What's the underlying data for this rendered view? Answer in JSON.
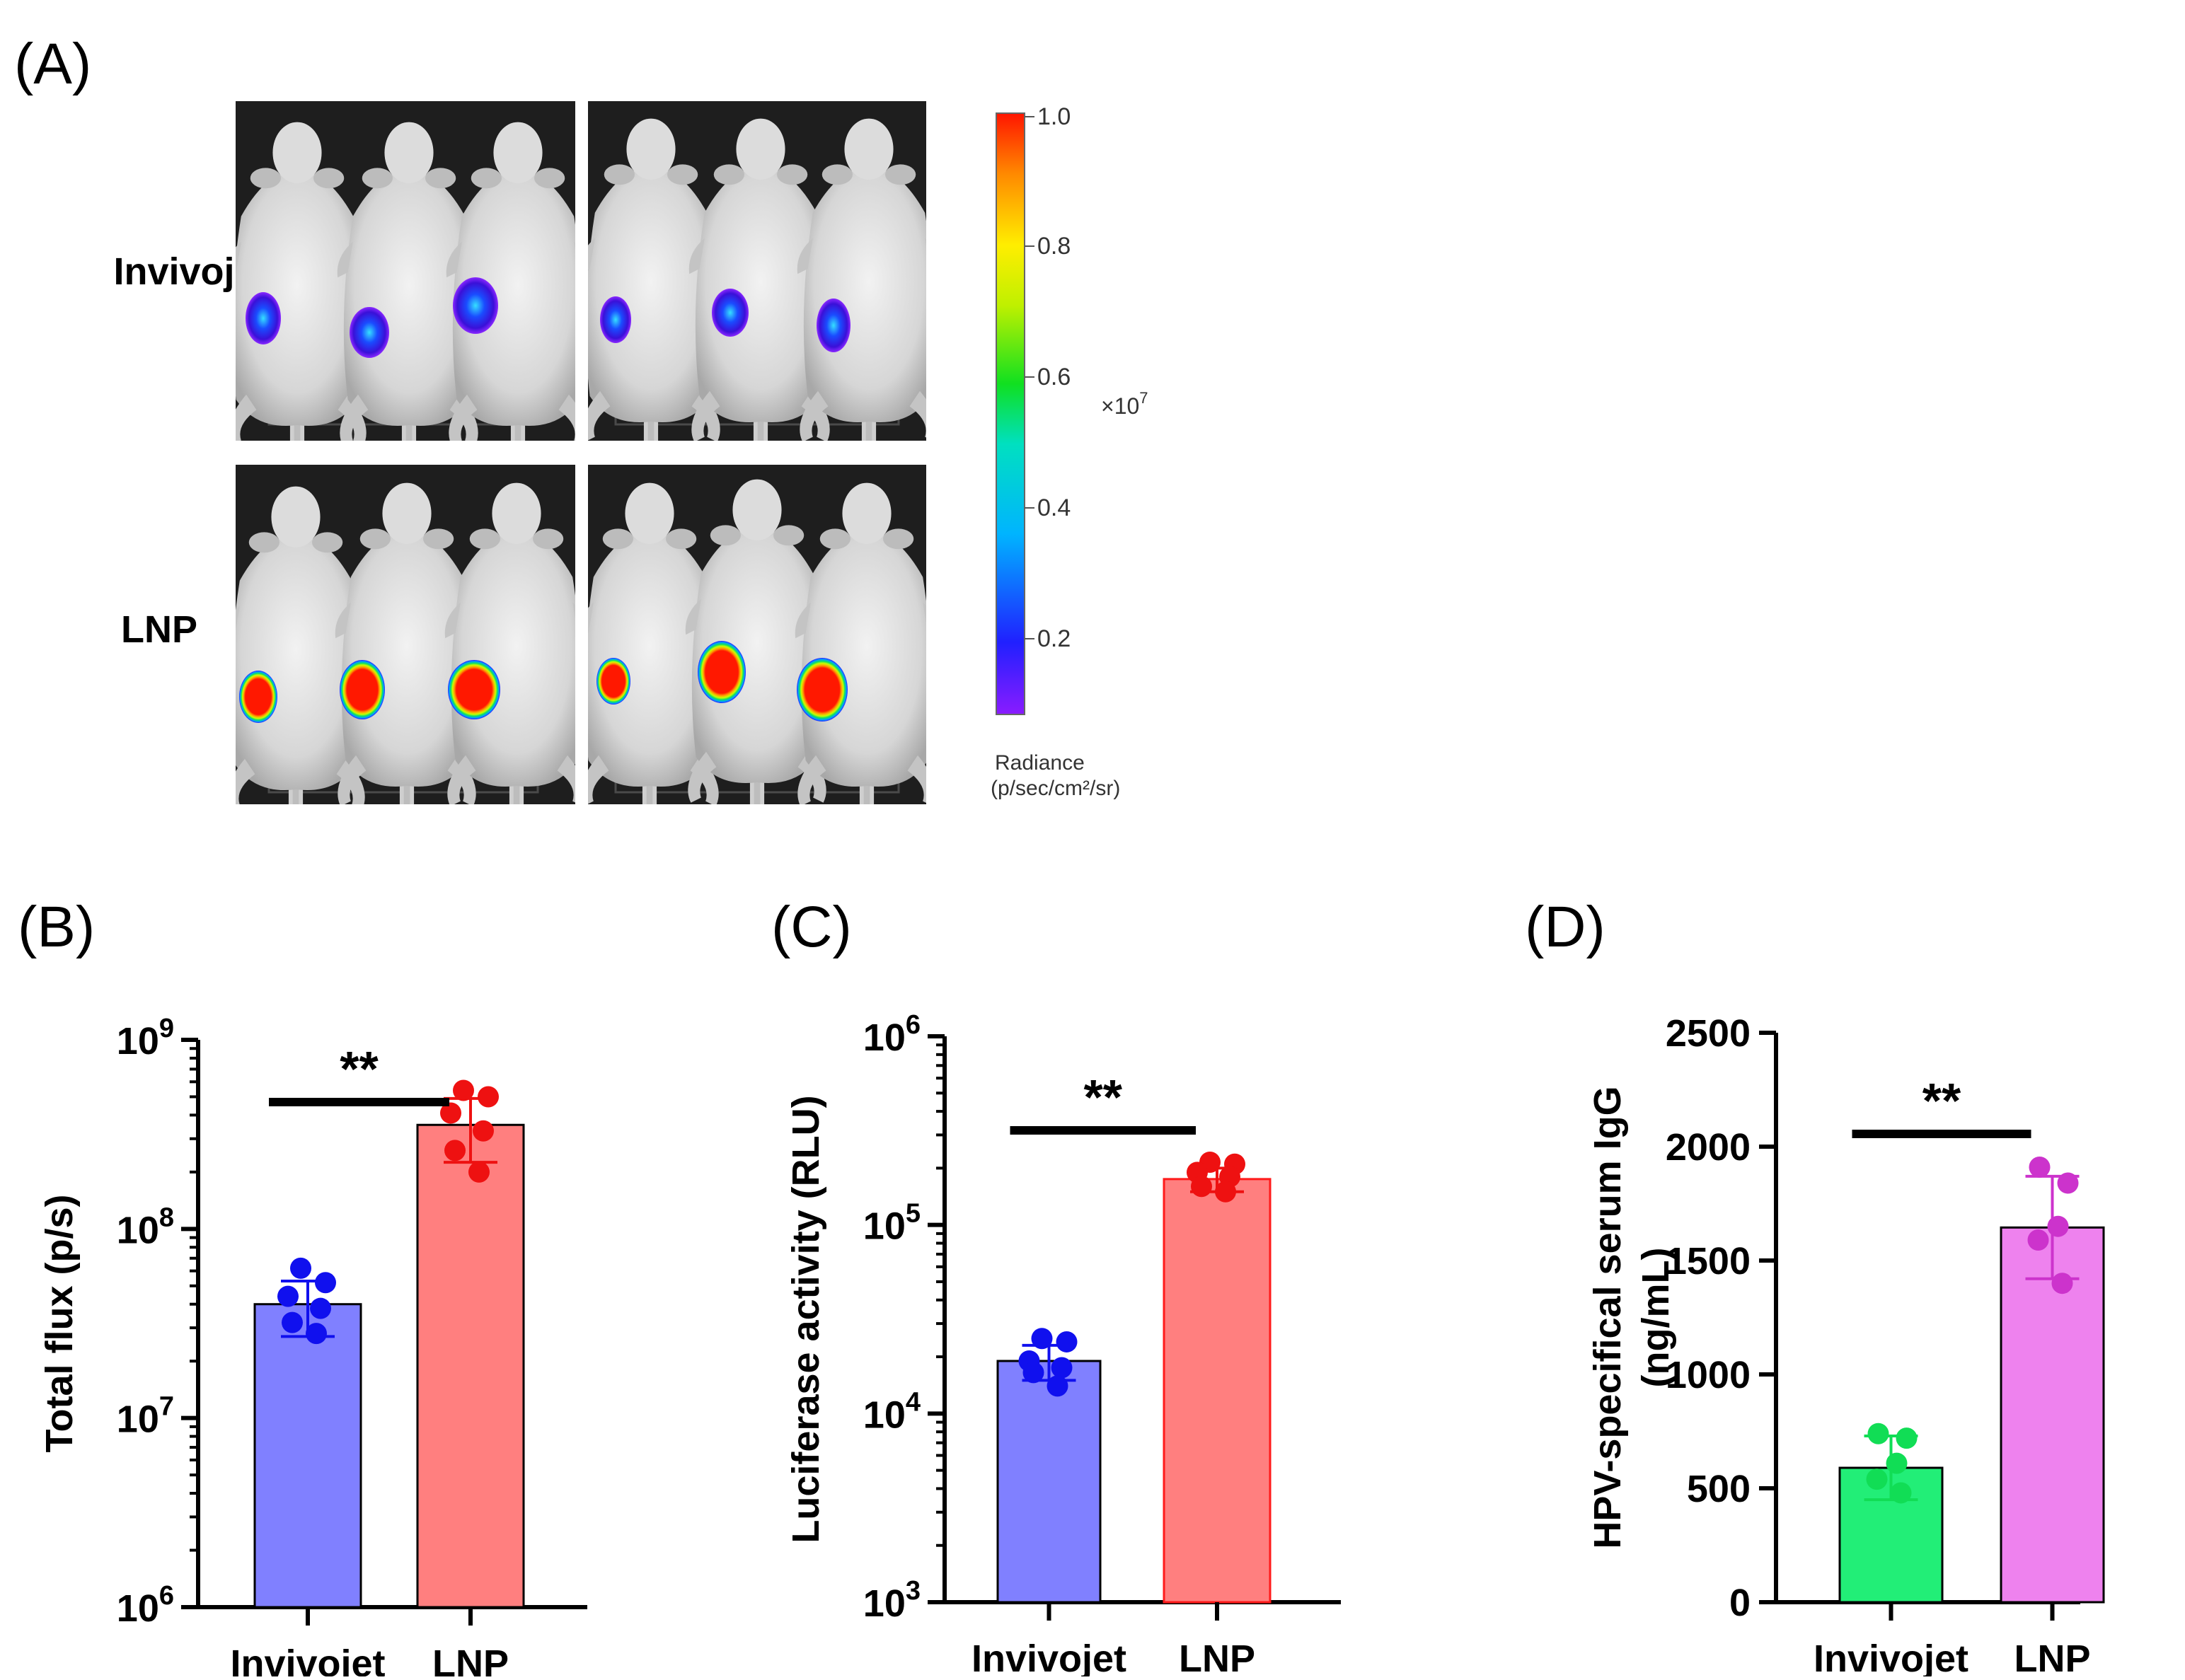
{
  "panel_a": {
    "label": "(A)",
    "row_labels": [
      "Invivojet",
      "LNP"
    ],
    "colorbar": {
      "ticks": [
        "1.0",
        "0.8",
        "0.6",
        "0.4",
        "0.2"
      ],
      "multiplier": "×10",
      "multiplier_exp": "7",
      "title_line1": "Radiance",
      "title_line2": "(p/sec/cm²/sr)"
    }
  },
  "chart_data": [
    {
      "id": "B",
      "label": "(B)",
      "type": "bar",
      "scale": "log",
      "ylabel": "Total flux (p/s)",
      "ylim": [
        1000000,
        1000000000
      ],
      "yticks": [
        {
          "base": "10",
          "exp": "6"
        },
        {
          "base": "10",
          "exp": "7"
        },
        {
          "base": "10",
          "exp": "8"
        },
        {
          "base": "10",
          "exp": "9"
        }
      ],
      "categories": [
        "Invivojet",
        "LNP"
      ],
      "values": [
        40000000,
        355000000
      ],
      "errors": [
        [
          27000000,
          53000000
        ],
        [
          225000000,
          490000000
        ]
      ],
      "points": [
        [
          62000000,
          52000000,
          44000000,
          38000000,
          32000000,
          28000000
        ],
        [
          540000000,
          500000000,
          410000000,
          330000000,
          260000000,
          200000000
        ]
      ],
      "colors": [
        "#8080ff",
        "#ff7f7f"
      ],
      "edge_colors": [
        "#000000",
        "#000000"
      ],
      "point_colors": [
        "#1010ee",
        "#ee1111"
      ],
      "significance": "**"
    },
    {
      "id": "C",
      "label": "(C)",
      "type": "bar",
      "scale": "log",
      "ylabel": "Luciferase activity (RLU)",
      "ylim": [
        1000,
        1000000
      ],
      "yticks": [
        {
          "base": "10",
          "exp": "3"
        },
        {
          "base": "10",
          "exp": "4"
        },
        {
          "base": "10",
          "exp": "5"
        },
        {
          "base": "10",
          "exp": "6"
        }
      ],
      "categories": [
        "Invivojet",
        "LNP"
      ],
      "values": [
        19000,
        175000
      ],
      "errors": [
        [
          15000,
          23000
        ],
        [
          150000,
          200000
        ]
      ],
      "points": [
        [
          25000,
          24000,
          19000,
          17500,
          16500,
          14000
        ],
        [
          215000,
          210000,
          190000,
          180000,
          160000,
          150000
        ]
      ],
      "colors": [
        "#8080ff",
        "#ff7f7f"
      ],
      "edge_colors": [
        "#000000",
        "#ff1a1a"
      ],
      "point_colors": [
        "#1010ee",
        "#ee1111"
      ],
      "significance": "**"
    },
    {
      "id": "D",
      "label": "(D)",
      "type": "bar",
      "scale": "linear",
      "ylabel": "HPV-specifical serum IgG",
      "ylabel2": "(ng/mL)",
      "ylim": [
        0,
        2500
      ],
      "yticks": [
        "0",
        "500",
        "1000",
        "1500",
        "2000",
        "2500"
      ],
      "categories": [
        "Invivojet",
        "LNP"
      ],
      "values": [
        590,
        1645
      ],
      "errors": [
        [
          450,
          730
        ],
        [
          1420,
          1870
        ]
      ],
      "points": [
        [
          740,
          720,
          610,
          540,
          480
        ],
        [
          1910,
          1840,
          1650,
          1590,
          1400
        ]
      ],
      "colors": [
        "#22ee77",
        "#ee82ee"
      ],
      "edge_colors": [
        "#000000",
        "#000000"
      ],
      "point_colors": [
        "#11dd55",
        "#cc33cc"
      ],
      "significance": "**"
    }
  ]
}
